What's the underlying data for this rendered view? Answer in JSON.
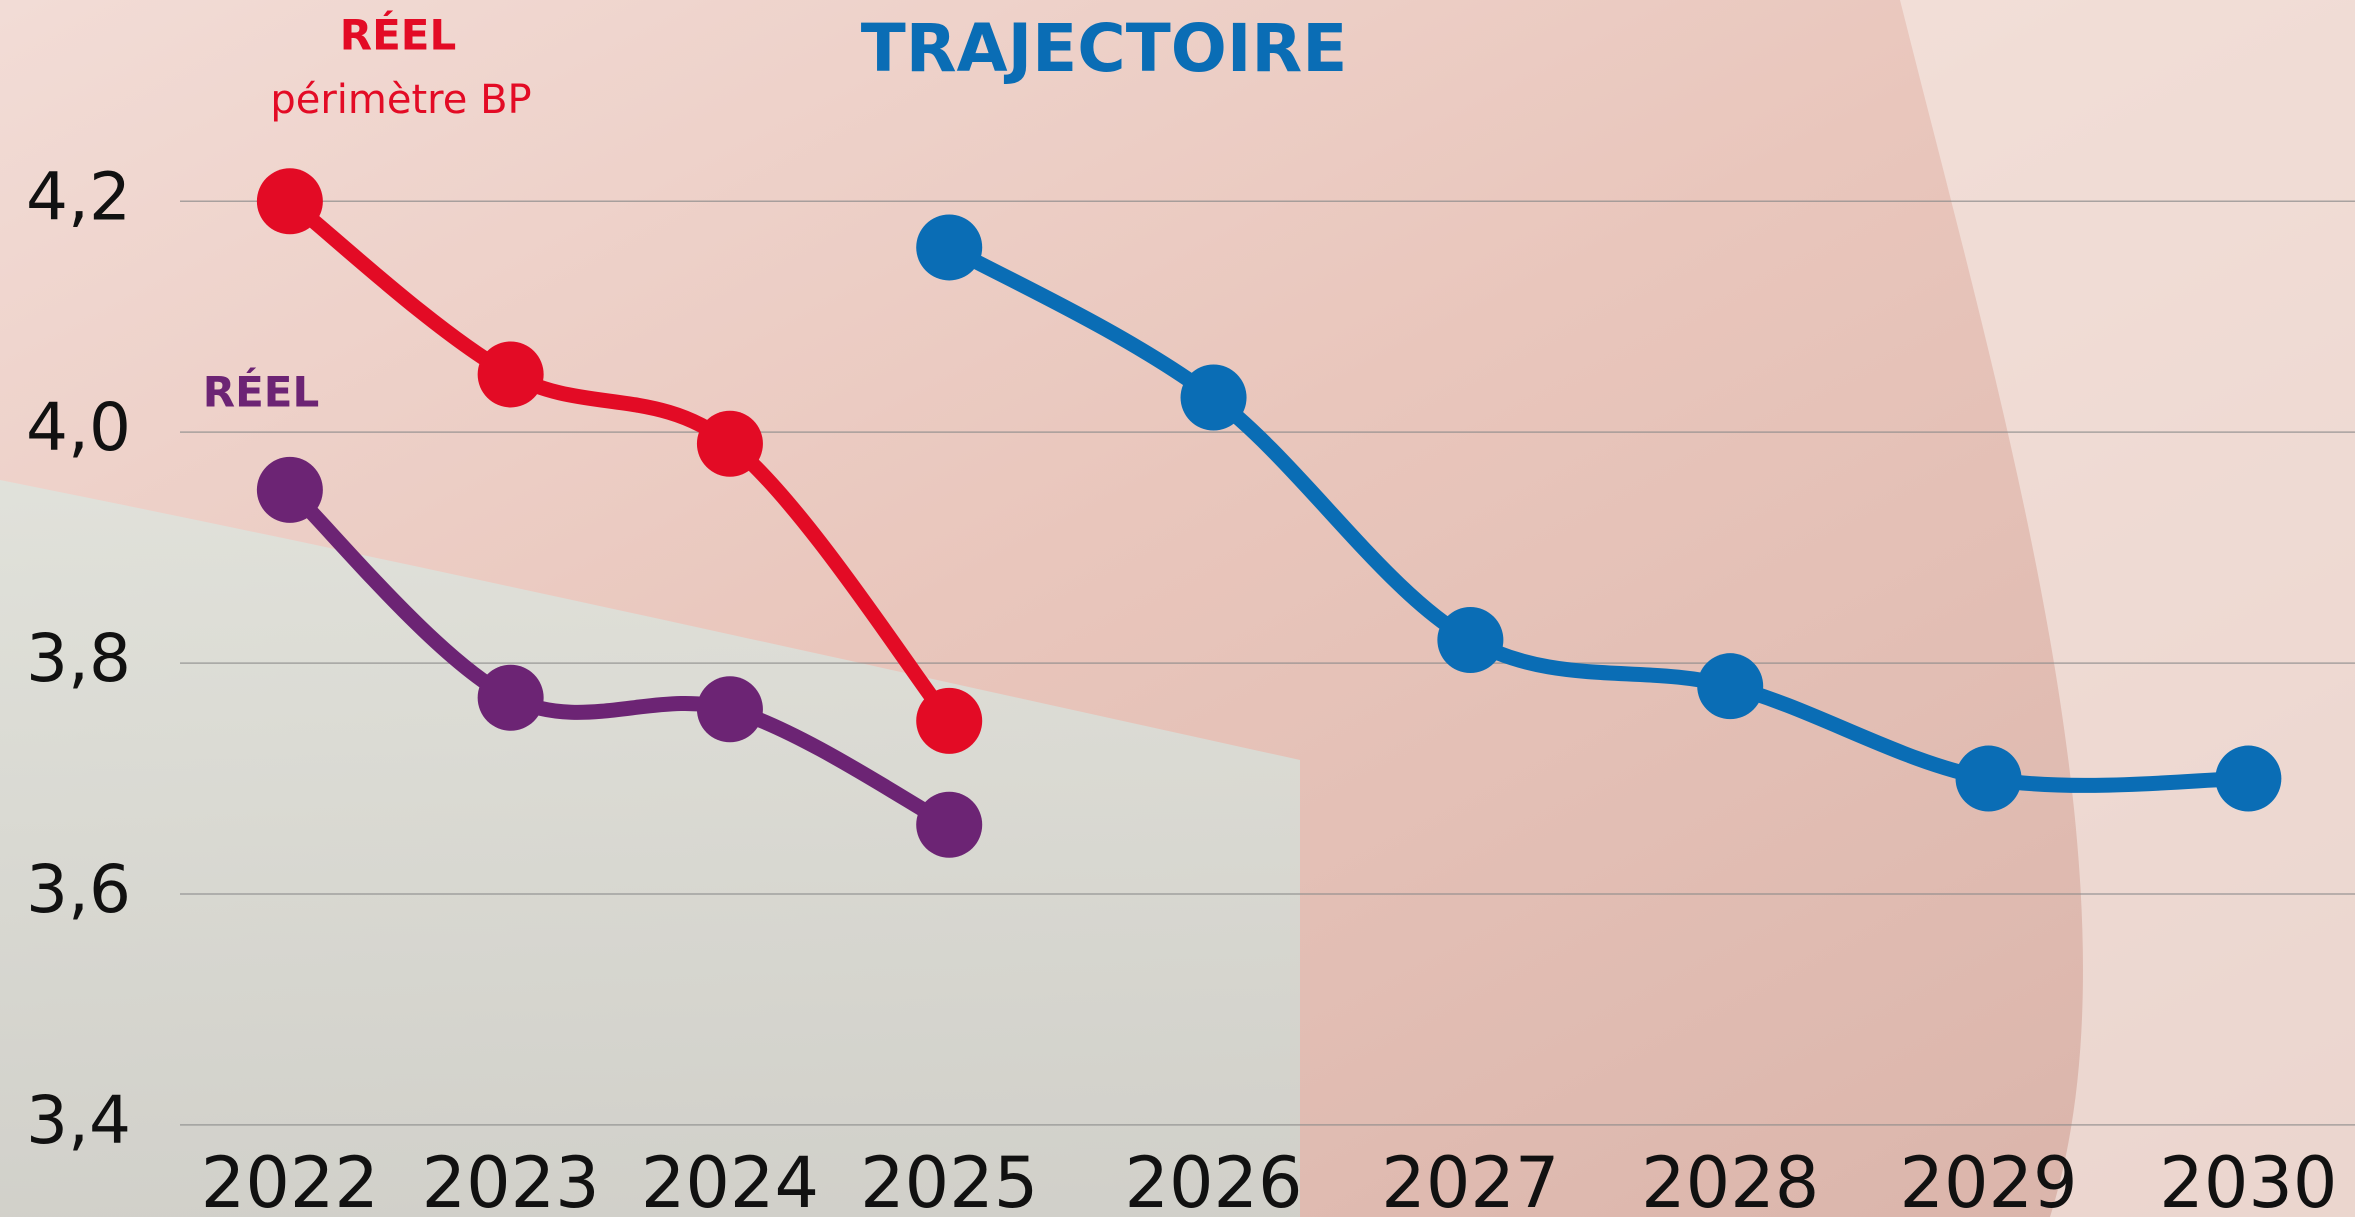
{
  "chart_data": {
    "type": "line",
    "categories": [
      "2022",
      "2023",
      "2024",
      "2025",
      "2026",
      "2027",
      "2028",
      "2029",
      "2030"
    ],
    "series": [
      {
        "name": "RÉEL",
        "color": "#e30b25",
        "values": [
          4.2,
          4.05,
          3.99,
          3.75,
          null,
          null,
          null,
          null,
          null
        ]
      },
      {
        "name": "RÉEL",
        "color": "#6c2474",
        "values": [
          3.95,
          3.77,
          3.76,
          3.66,
          null,
          null,
          null,
          null,
          null
        ]
      },
      {
        "name": "TRAJECTOIRE",
        "color": "#0a6db5",
        "values": [
          null,
          null,
          null,
          4.16,
          4.03,
          3.82,
          3.78,
          3.7,
          3.7
        ]
      }
    ],
    "annotations": [
      "périmètre BP"
    ],
    "ylim": [
      3.4,
      4.2
    ],
    "yticks": [
      {
        "value": 3.4,
        "label": "3,4"
      },
      {
        "value": 3.6,
        "label": "3,6"
      },
      {
        "value": 3.8,
        "label": "3,8"
      },
      {
        "value": 4.0,
        "label": "4,0"
      },
      {
        "value": 4.2,
        "label": "4,2"
      }
    ],
    "grid": true
  }
}
